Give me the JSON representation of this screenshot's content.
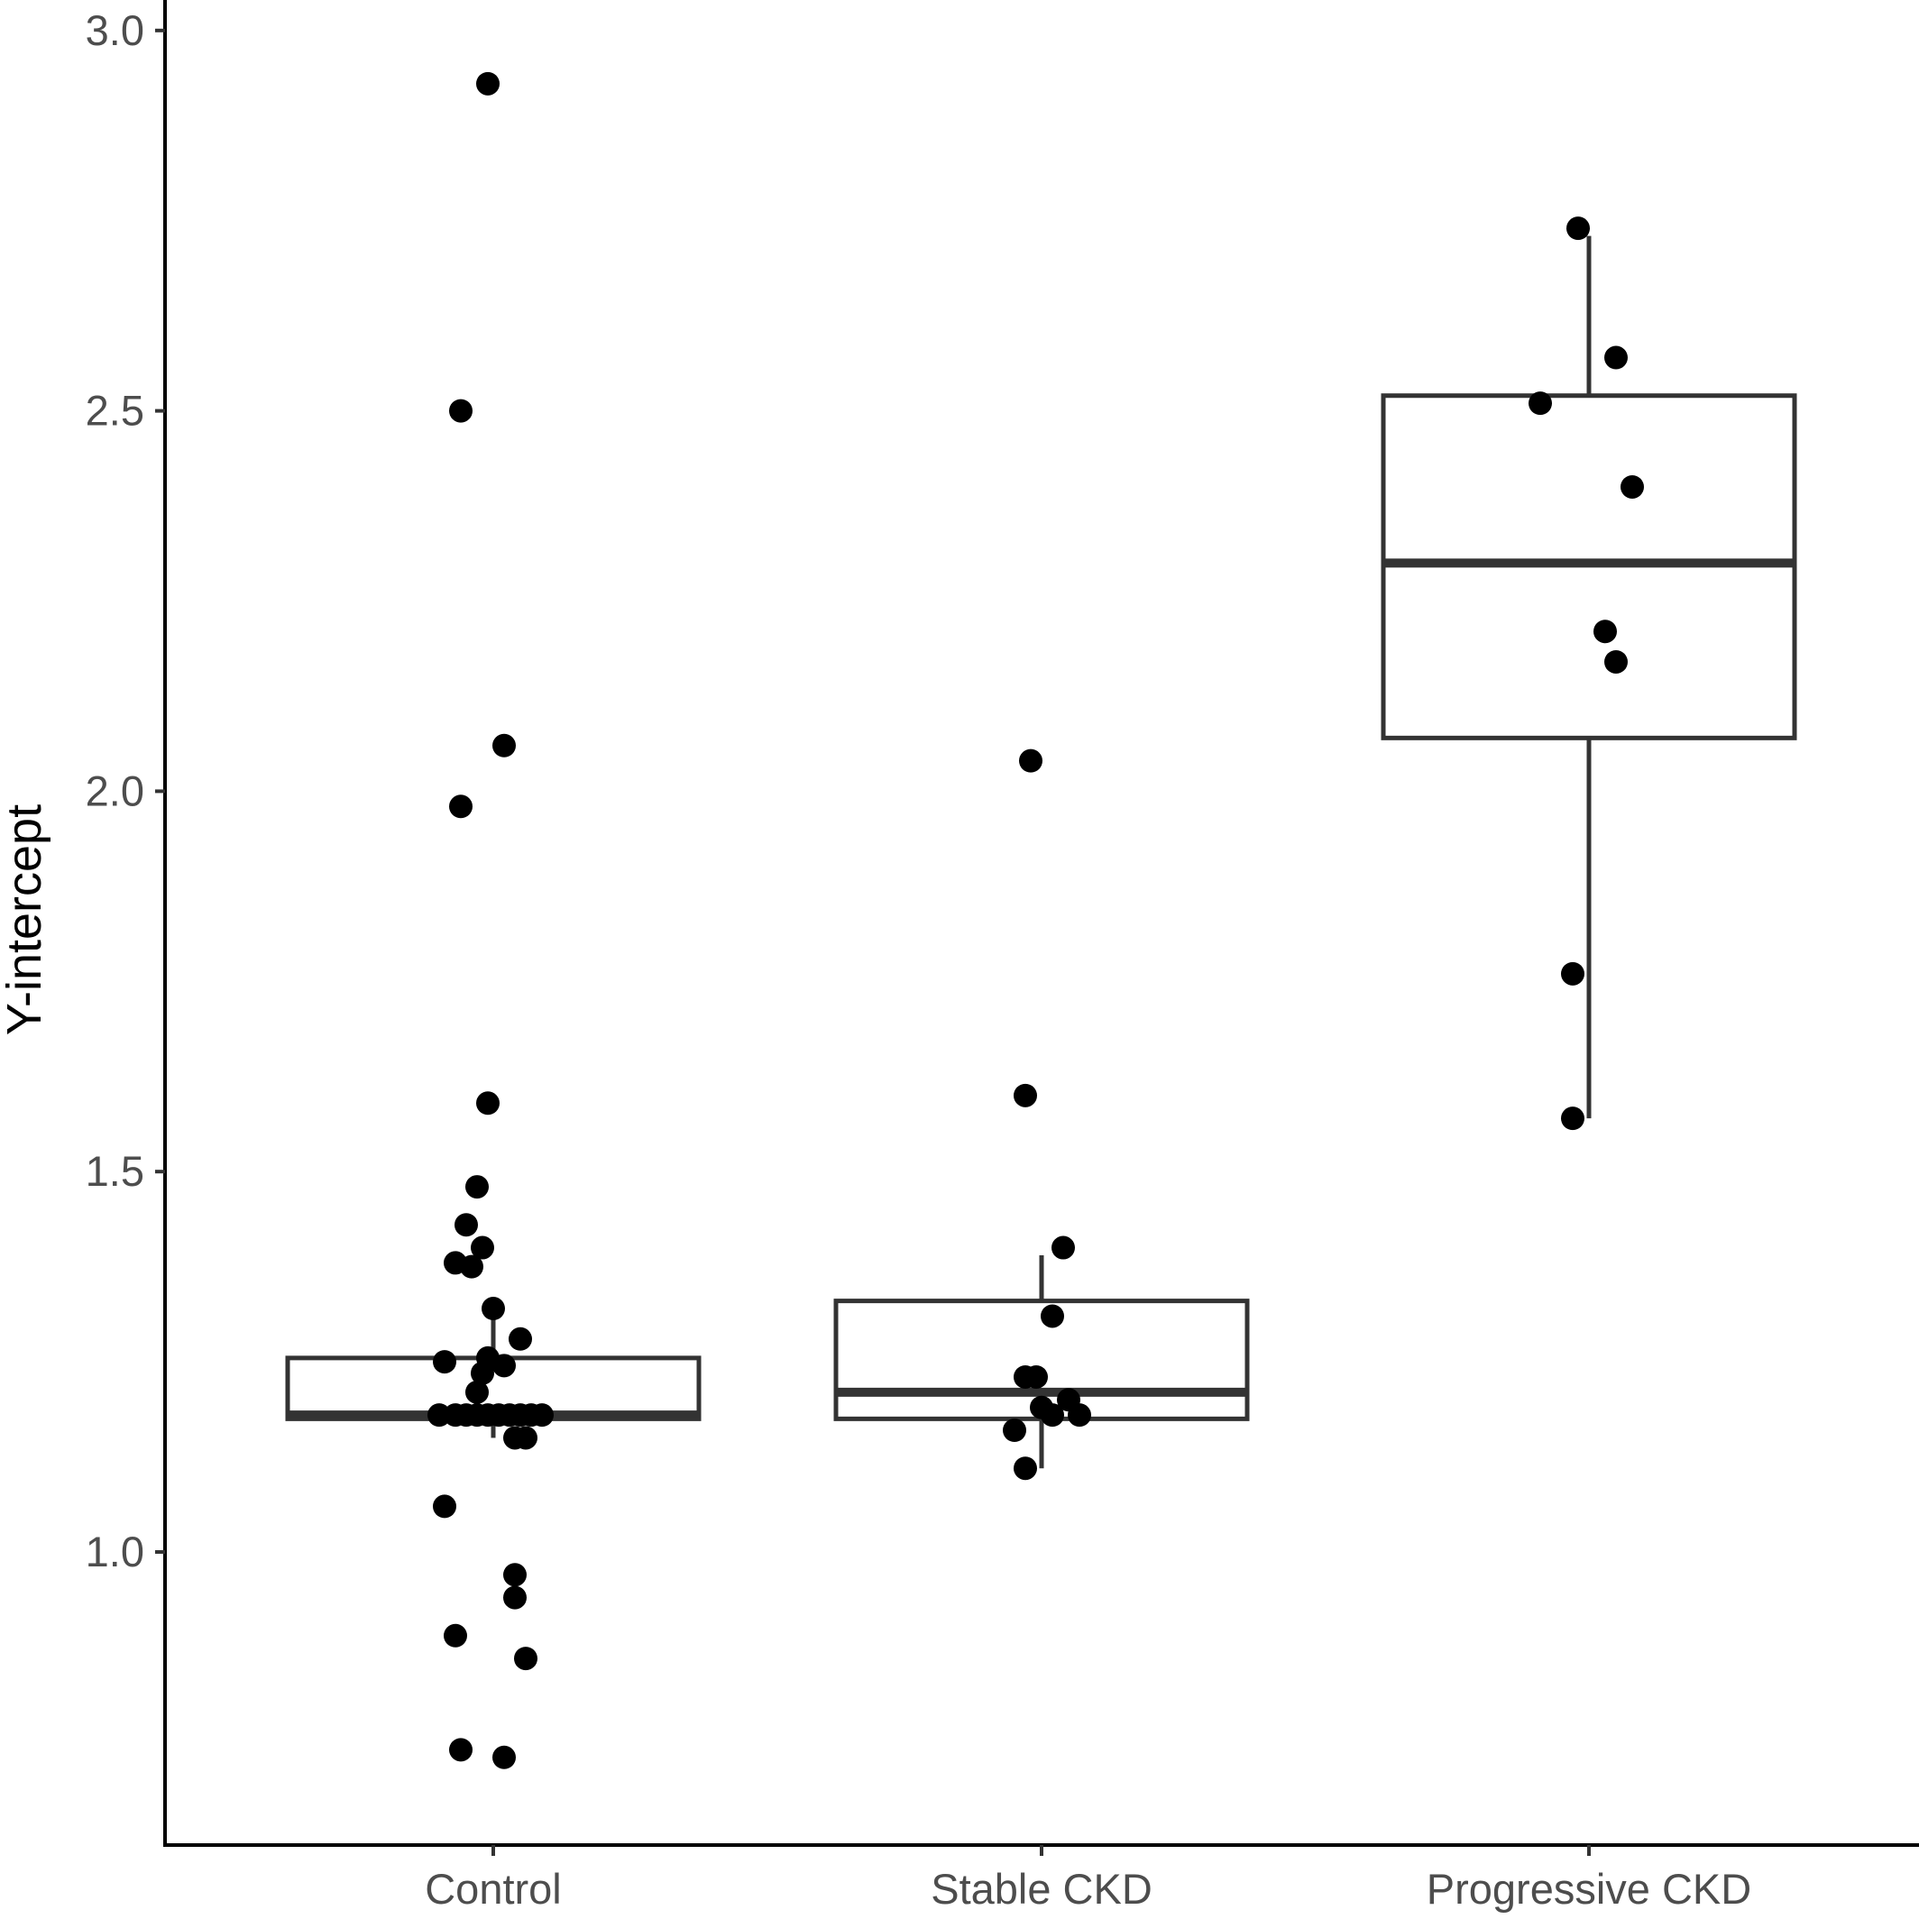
{
  "chart_data": {
    "type": "box",
    "title": "",
    "xlabel": "",
    "ylabel": "Y-intercept",
    "ylim": [
      0.63,
      3.04
    ],
    "yticks": [
      1.0,
      1.5,
      2.0,
      2.5,
      3.0
    ],
    "ytick_labels": [
      "1.0",
      "1.5",
      "2.0",
      "2.5",
      "3.0"
    ],
    "categories": [
      "Control",
      "Stable CKD",
      "Progressive CKD"
    ],
    "grid": false,
    "legend": "none",
    "boxes": [
      {
        "category": "Control",
        "whisker_low": 1.15,
        "q1": 1.175,
        "median": 1.18,
        "q3": 1.255,
        "whisker_high": 1.31
      },
      {
        "category": "Stable CKD",
        "whisker_low": 1.11,
        "q1": 1.175,
        "median": 1.21,
        "q3": 1.33,
        "whisker_high": 1.39
      },
      {
        "category": "Progressive CKD",
        "whisker_low": 1.57,
        "q1": 2.07,
        "median": 2.3,
        "q3": 2.52,
        "whisker_high": 2.73
      }
    ],
    "series": [
      {
        "category": "Control",
        "points": [
          [
            -0.01,
            2.93
          ],
          [
            -0.06,
            2.5
          ],
          [
            0.02,
            2.06
          ],
          [
            -0.06,
            1.98
          ],
          [
            -0.01,
            1.59
          ],
          [
            -0.03,
            1.48
          ],
          [
            -0.05,
            1.43
          ],
          [
            -0.02,
            1.4
          ],
          [
            -0.07,
            1.38
          ],
          [
            -0.04,
            1.375
          ],
          [
            0.0,
            1.32
          ],
          [
            0.05,
            1.28
          ],
          [
            -0.09,
            1.25
          ],
          [
            -0.01,
            1.255
          ],
          [
            0.02,
            1.245
          ],
          [
            -0.02,
            1.235
          ],
          [
            -0.03,
            1.21
          ],
          [
            -0.1,
            1.18
          ],
          [
            -0.07,
            1.18
          ],
          [
            -0.05,
            1.18
          ],
          [
            -0.03,
            1.18
          ],
          [
            -0.01,
            1.18
          ],
          [
            0.01,
            1.18
          ],
          [
            0.03,
            1.18
          ],
          [
            0.05,
            1.18
          ],
          [
            0.07,
            1.18
          ],
          [
            0.09,
            1.18
          ],
          [
            0.04,
            1.15
          ],
          [
            0.06,
            1.15
          ],
          [
            -0.09,
            1.06
          ],
          [
            0.04,
            0.97
          ],
          [
            0.04,
            0.94
          ],
          [
            -0.07,
            0.89
          ],
          [
            0.06,
            0.86
          ],
          [
            -0.06,
            0.74
          ],
          [
            0.02,
            0.73
          ]
        ]
      },
      {
        "category": "Stable CKD",
        "points": [
          [
            -0.02,
            2.04
          ],
          [
            -0.03,
            1.6
          ],
          [
            0.04,
            1.4
          ],
          [
            0.02,
            1.31
          ],
          [
            -0.03,
            1.23
          ],
          [
            -0.01,
            1.23
          ],
          [
            0.05,
            1.2
          ],
          [
            0.0,
            1.19
          ],
          [
            0.02,
            1.18
          ],
          [
            0.07,
            1.18
          ],
          [
            -0.05,
            1.16
          ],
          [
            -0.03,
            1.11
          ]
        ]
      },
      {
        "category": "Progressive CKD",
        "points": [
          [
            -0.02,
            2.74
          ],
          [
            0.05,
            2.57
          ],
          [
            -0.09,
            2.51
          ],
          [
            0.08,
            2.4
          ],
          [
            0.03,
            2.21
          ],
          [
            0.05,
            2.17
          ],
          [
            -0.03,
            1.76
          ],
          [
            -0.03,
            1.57
          ]
        ]
      }
    ]
  }
}
